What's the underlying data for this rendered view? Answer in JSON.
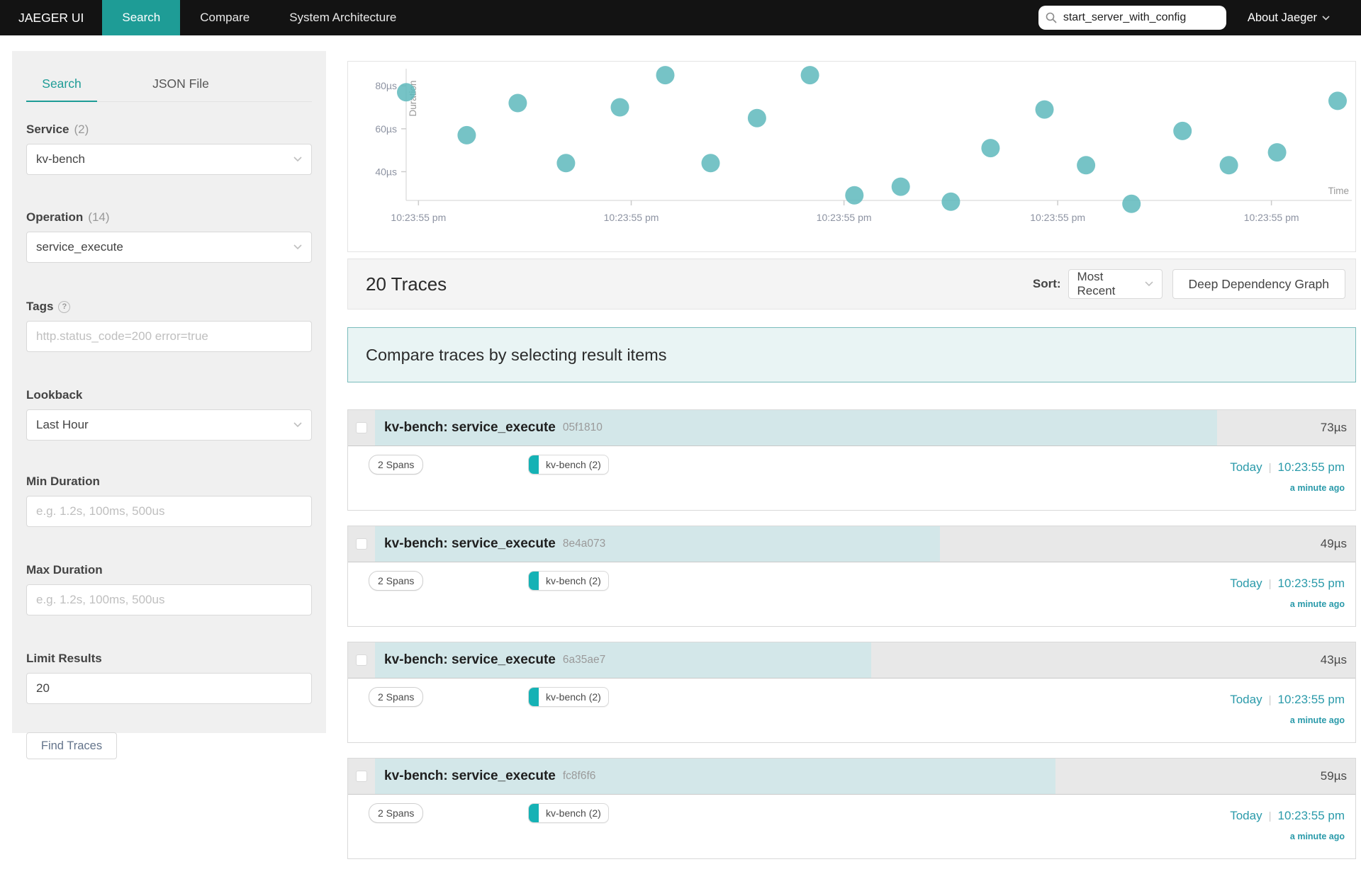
{
  "nav": {
    "brand": "JAEGER UI",
    "items": [
      {
        "label": "Search",
        "active": true
      },
      {
        "label": "Compare",
        "active": false
      },
      {
        "label": "System Architecture",
        "active": false
      }
    ],
    "search": {
      "value": "start_server_with_config"
    },
    "about_label": "About Jaeger"
  },
  "sidebar": {
    "tabs": [
      {
        "label": "Search",
        "active": true
      },
      {
        "label": "JSON File",
        "active": false
      }
    ],
    "service": {
      "label": "Service",
      "count": "(2)",
      "value": "kv-bench"
    },
    "operation": {
      "label": "Operation",
      "count": "(14)",
      "value": "service_execute"
    },
    "tags": {
      "label": "Tags",
      "help": "?",
      "placeholder": "http.status_code=200 error=true"
    },
    "lookback": {
      "label": "Lookback",
      "value": "Last Hour"
    },
    "min_duration": {
      "label": "Min Duration",
      "placeholder": "e.g. 1.2s, 100ms, 500us"
    },
    "max_duration": {
      "label": "Max Duration",
      "placeholder": "e.g. 1.2s, 100ms, 500us"
    },
    "limit": {
      "label": "Limit Results",
      "value": "20"
    },
    "find_button": "Find Traces"
  },
  "chart_data": {
    "type": "scatter",
    "title": "",
    "xlabel": "Time",
    "ylabel": "Duration",
    "ylim": [
      26.6,
      88
    ],
    "y_ticks": {
      "values": [
        80,
        60,
        40
      ],
      "labels": [
        "80µs",
        "60µs",
        "40µs"
      ]
    },
    "x_ticks": {
      "fractions": [
        0.013,
        0.238,
        0.463,
        0.689,
        0.915
      ],
      "labels": [
        "10:23:55 pm",
        "10:23:55 pm",
        "10:23:55 pm",
        "10:23:55 pm",
        "10:23:55 pm"
      ]
    },
    "point_color": "#5eb8bc",
    "points": [
      {
        "t": 0.0,
        "us": 77
      },
      {
        "t": 0.064,
        "us": 57
      },
      {
        "t": 0.118,
        "us": 72
      },
      {
        "t": 0.169,
        "us": 44
      },
      {
        "t": 0.226,
        "us": 70
      },
      {
        "t": 0.274,
        "us": 85
      },
      {
        "t": 0.322,
        "us": 44
      },
      {
        "t": 0.371,
        "us": 65
      },
      {
        "t": 0.427,
        "us": 85
      },
      {
        "t": 0.474,
        "us": 29
      },
      {
        "t": 0.523,
        "us": 33
      },
      {
        "t": 0.576,
        "us": 26
      },
      {
        "t": 0.618,
        "us": 51
      },
      {
        "t": 0.675,
        "us": 69
      },
      {
        "t": 0.719,
        "us": 43
      },
      {
        "t": 0.767,
        "us": 25
      },
      {
        "t": 0.821,
        "us": 59
      },
      {
        "t": 0.87,
        "us": 43
      },
      {
        "t": 0.921,
        "us": 49
      },
      {
        "t": 0.985,
        "us": 73
      }
    ]
  },
  "results_header": {
    "count_label": "20 Traces",
    "sort_label": "Sort:",
    "sort_value": "Most Recent",
    "ddg_button": "Deep Dependency Graph"
  },
  "compare_banner": "Compare traces by selecting result items",
  "traces": [
    {
      "title": "kv-bench: service_execute",
      "trace_id": "05f1810",
      "duration": "73µs",
      "bar_percent": 85.9,
      "spans": "2 Spans",
      "service_chip": "kv-bench (2)",
      "date": "Today",
      "time": "10:23:55 pm",
      "relative": "a minute ago"
    },
    {
      "title": "kv-bench: service_execute",
      "trace_id": "8e4a073",
      "duration": "49µs",
      "bar_percent": 57.6,
      "spans": "2 Spans",
      "service_chip": "kv-bench (2)",
      "date": "Today",
      "time": "10:23:55 pm",
      "relative": "a minute ago"
    },
    {
      "title": "kv-bench: service_execute",
      "trace_id": "6a35ae7",
      "duration": "43µs",
      "bar_percent": 50.6,
      "spans": "2 Spans",
      "service_chip": "kv-bench (2)",
      "date": "Today",
      "time": "10:23:55 pm",
      "relative": "a minute ago"
    },
    {
      "title": "kv-bench: service_execute",
      "trace_id": "fc8f6f6",
      "duration": "59µs",
      "bar_percent": 69.4,
      "spans": "2 Spans",
      "service_chip": "kv-bench (2)",
      "date": "Today",
      "time": "10:23:55 pm",
      "relative": "a minute ago"
    }
  ]
}
